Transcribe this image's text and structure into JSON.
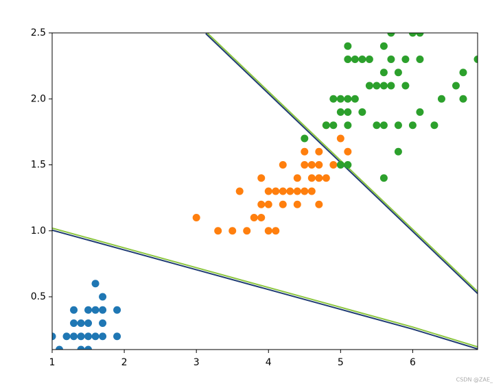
{
  "chart_data": {
    "type": "scatter",
    "xlim": [
      1,
      6.9
    ],
    "ylim": [
      0.1,
      2.5
    ],
    "xticks": [
      1,
      2,
      3,
      4,
      5,
      6
    ],
    "yticks": [
      0.5,
      {
        "value": 1,
        "label": "1.0"
      },
      1.5,
      {
        "value": 2,
        "label": "2.0"
      },
      2.5
    ],
    "series": [
      {
        "color": "#1f77b4",
        "x": [
          1.0,
          1.1,
          1.2,
          1.3,
          1.3,
          1.3,
          1.4,
          1.4,
          1.4,
          1.5,
          1.5,
          1.5,
          1.5,
          1.6,
          1.6,
          1.6,
          1.7,
          1.7,
          1.7,
          1.7,
          1.9,
          1.9
        ],
        "values": [
          0.2,
          0.1,
          0.2,
          0.2,
          0.3,
          0.4,
          0.1,
          0.2,
          0.3,
          0.1,
          0.2,
          0.3,
          0.4,
          0.2,
          0.4,
          0.6,
          0.2,
          0.3,
          0.4,
          0.5,
          0.2,
          0.4
        ]
      },
      {
        "color": "#ff7f0e",
        "x": [
          3.0,
          3.3,
          3.5,
          3.6,
          3.7,
          3.8,
          3.9,
          3.9,
          3.9,
          4.0,
          4.0,
          4.0,
          4.1,
          4.1,
          4.2,
          4.2,
          4.2,
          4.3,
          4.4,
          4.4,
          4.4,
          4.5,
          4.5,
          4.5,
          4.6,
          4.6,
          4.6,
          4.7,
          4.7,
          4.7,
          4.7,
          4.8,
          4.8,
          4.9,
          5.0,
          5.1
        ],
        "values": [
          1.1,
          1.0,
          1.0,
          1.3,
          1.0,
          1.1,
          1.1,
          1.2,
          1.4,
          1.0,
          1.2,
          1.3,
          1.0,
          1.3,
          1.2,
          1.3,
          1.5,
          1.3,
          1.2,
          1.3,
          1.4,
          1.3,
          1.5,
          1.6,
          1.3,
          1.4,
          1.5,
          1.2,
          1.4,
          1.5,
          1.6,
          1.4,
          1.8,
          1.5,
          1.7,
          1.6
        ]
      },
      {
        "color": "#2ca02c",
        "x": [
          4.5,
          4.8,
          4.9,
          4.9,
          5.0,
          5.0,
          5.0,
          5.1,
          5.1,
          5.1,
          5.1,
          5.1,
          5.1,
          5.2,
          5.2,
          5.3,
          5.3,
          5.4,
          5.4,
          5.5,
          5.5,
          5.6,
          5.6,
          5.6,
          5.6,
          5.6,
          5.7,
          5.7,
          5.7,
          5.8,
          5.8,
          5.8,
          5.9,
          5.9,
          6.0,
          6.0,
          6.1,
          6.1,
          6.1,
          6.3,
          6.4,
          6.6,
          6.7,
          6.7,
          6.9
        ],
        "values": [
          1.7,
          1.8,
          1.8,
          2.0,
          1.5,
          1.9,
          2.0,
          1.5,
          1.8,
          1.9,
          2.0,
          2.3,
          2.4,
          2.0,
          2.3,
          1.9,
          2.3,
          2.1,
          2.3,
          1.8,
          2.1,
          1.4,
          1.8,
          2.1,
          2.2,
          2.4,
          2.1,
          2.3,
          2.5,
          1.6,
          1.8,
          2.2,
          2.1,
          2.3,
          1.8,
          2.5,
          1.9,
          2.3,
          2.5,
          1.8,
          2.0,
          2.1,
          2.0,
          2.2,
          2.3
        ]
      }
    ],
    "boundaries": [
      {
        "x": [
          1,
          2,
          3,
          4,
          5,
          6,
          6.9
        ],
        "values": [
          1.01,
          0.86,
          0.71,
          0.56,
          0.41,
          0.26,
          0.11
        ]
      },
      {
        "x": [
          3.13,
          6.9
        ],
        "values": [
          2.5,
          0.53
        ]
      }
    ],
    "boundary_colors": [
      "#1f3b73",
      "#8cc63f"
    ],
    "watermark": "CSDN @ZAE_"
  }
}
